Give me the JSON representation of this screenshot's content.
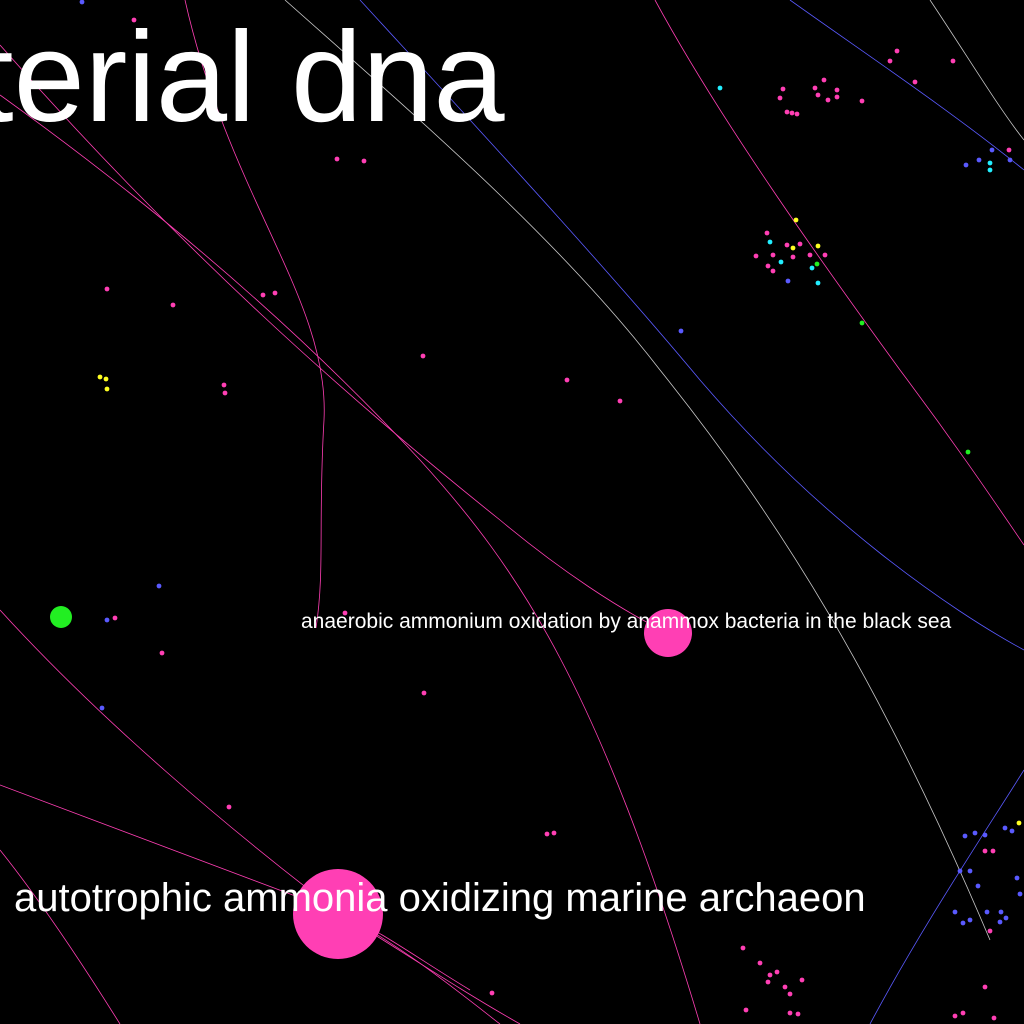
{
  "labels": {
    "dna": "terial dna",
    "anammox": "anaerobic ammonium oxidation by anammox bacteria in the black sea",
    "archaeon": "autotrophic ammonia oxidizing marine archaeon"
  },
  "colors": {
    "background": "#000000",
    "pink": "#ff3fb4",
    "blue": "#5a5aff",
    "grey": "#c8c8c8",
    "green": "#22ee22",
    "yellow": "#ffff22",
    "cyan": "#22eeff"
  }
}
